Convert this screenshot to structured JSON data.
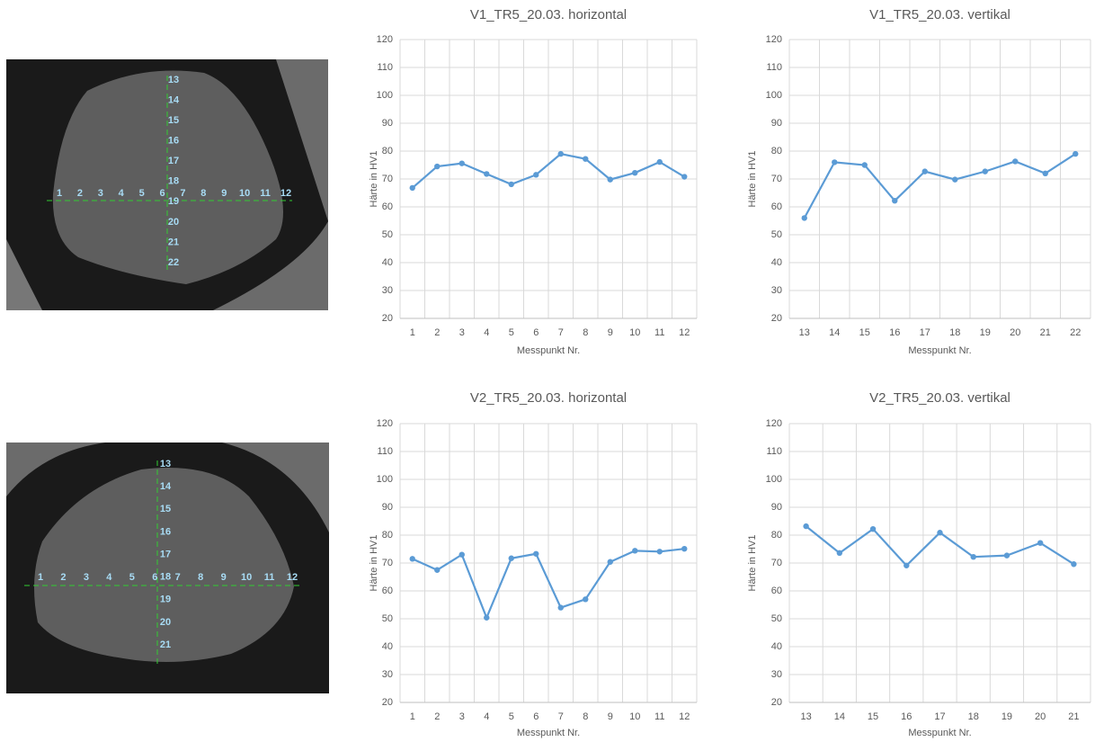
{
  "chart_data": [
    {
      "type": "line",
      "title": "V1_TR5_20.03. horizontal",
      "x_label": "Messpunkt Nr.",
      "y_label": "Härte in HV1",
      "categories": [
        "1",
        "2",
        "3",
        "4",
        "5",
        "6",
        "7",
        "8",
        "9",
        "10",
        "11",
        "12"
      ],
      "values": [
        66.8,
        74.5,
        75.6,
        71.8,
        68.1,
        71.5,
        79,
        77.2,
        69.8,
        72.2,
        76.1,
        70.8
      ],
      "color": "#5b9bd5",
      "ylim": [
        20,
        120
      ],
      "yticks": [
        20,
        30,
        40,
        50,
        60,
        70,
        80,
        90,
        100,
        110,
        120
      ],
      "grid": true
    },
    {
      "type": "line",
      "title": "V1_TR5_20.03. vertikal",
      "x_label": "Messpunkt Nr.",
      "y_label": "Härte in HV1",
      "categories": [
        "13",
        "14",
        "15",
        "16",
        "17",
        "18",
        "19",
        "20",
        "21",
        "22"
      ],
      "values": [
        56,
        76,
        75,
        62.2,
        72.7,
        69.8,
        72.7,
        76.3,
        72,
        79
      ],
      "color": "#5b9bd5",
      "ylim": [
        20,
        120
      ],
      "yticks": [
        20,
        30,
        40,
        50,
        60,
        70,
        80,
        90,
        100,
        110,
        120
      ],
      "grid": true
    },
    {
      "type": "line",
      "title": "V2_TR5_20.03. horizontal",
      "x_label": "Messpunkt Nr.",
      "y_label": "Härte in HV1",
      "categories": [
        "1",
        "2",
        "3",
        "4",
        "5",
        "6",
        "7",
        "8",
        "9",
        "10",
        "11",
        "12"
      ],
      "values": [
        71.5,
        67.5,
        73,
        50.4,
        71.7,
        73.3,
        54,
        57,
        70.4,
        74.4,
        74.1,
        75.1
      ],
      "color": "#5b9bd5",
      "ylim": [
        20,
        120
      ],
      "yticks": [
        20,
        30,
        40,
        50,
        60,
        70,
        80,
        90,
        100,
        110,
        120
      ],
      "grid": true
    },
    {
      "type": "line",
      "title": "V2_TR5_20.03. vertikal",
      "x_label": "Messpunkt Nr.",
      "y_label": "Härte in HV1",
      "categories": [
        "13",
        "14",
        "15",
        "16",
        "17",
        "18",
        "19",
        "20",
        "21"
      ],
      "values": [
        83.2,
        73.6,
        82.2,
        69.1,
        80.9,
        72.2,
        72.7,
        77.2,
        69.6
      ],
      "color": "#5b9bd5",
      "ylim": [
        20,
        120
      ],
      "yticks": [
        20,
        30,
        40,
        50,
        60,
        70,
        80,
        90,
        100,
        110,
        120
      ],
      "grid": true
    }
  ],
  "micrographs": [
    {
      "horizontal_points": [
        1,
        2,
        3,
        4,
        5,
        6,
        7,
        8,
        9,
        10,
        11,
        12
      ],
      "vertical_points": [
        13,
        14,
        15,
        16,
        17,
        18,
        19,
        20,
        21,
        22
      ]
    },
    {
      "horizontal_points": [
        1,
        2,
        3,
        4,
        5,
        6,
        7,
        8,
        9,
        10,
        11,
        12
      ],
      "vertical_points": [
        13,
        14,
        15,
        16,
        17,
        18,
        19,
        20,
        21
      ]
    }
  ]
}
